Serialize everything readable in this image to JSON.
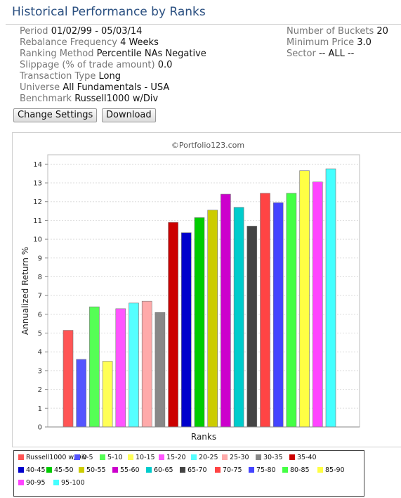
{
  "header": {
    "title": "Historical Performance by Ranks"
  },
  "settings_left": [
    {
      "label": "Period",
      "value": "01/02/99 - 05/03/14"
    },
    {
      "label": "Rebalance Frequency",
      "value": "4 Weeks"
    },
    {
      "label": "Ranking Method",
      "value": "Percentile NAs Negative"
    },
    {
      "label": "Slippage (% of trade amount)",
      "value": "0.0"
    },
    {
      "label": "Transaction Type",
      "value": "Long"
    },
    {
      "label": "Universe",
      "value": "All Fundamentals - USA"
    },
    {
      "label": "Benchmark",
      "value": "Russell1000 w/Div"
    }
  ],
  "settings_right": [
    {
      "label": "Number of Buckets",
      "value": "20"
    },
    {
      "label": "Minimum Price",
      "value": "3.0"
    },
    {
      "label": "Sector",
      "value": "-- ALL --"
    }
  ],
  "buttons": {
    "change_settings": "Change Settings",
    "download": "Download"
  },
  "chart_data": {
    "type": "bar",
    "title": "©Portfolio123.com",
    "xlabel": "Ranks",
    "ylabel": "Annualized Return %",
    "ylim": [
      0,
      14.5
    ],
    "yticks": [
      0,
      1,
      2,
      3,
      4,
      5,
      6,
      7,
      8,
      9,
      10,
      11,
      12,
      13,
      14
    ],
    "grid": true,
    "legend_position": "bottom",
    "categories": [
      "Russell1000 w/Div",
      "0-5",
      "5-10",
      "10-15",
      "15-20",
      "20-25",
      "25-30",
      "30-35",
      "35-40",
      "40-45",
      "45-50",
      "50-55",
      "55-60",
      "60-65",
      "65-70",
      "70-75",
      "75-80",
      "80-85",
      "85-90",
      "90-95",
      "95-100"
    ],
    "values": [
      5.15,
      3.6,
      6.4,
      3.5,
      6.3,
      6.6,
      6.7,
      6.1,
      10.9,
      10.35,
      11.15,
      11.55,
      12.4,
      11.7,
      10.7,
      12.45,
      11.95,
      12.45,
      13.65,
      13.05,
      13.75
    ],
    "colors": [
      "#ff5555",
      "#5555ff",
      "#55ff55",
      "#ffff55",
      "#ff55ff",
      "#55ffff",
      "#ffaaaa",
      "#888888",
      "#cc0000",
      "#0000cc",
      "#00cc00",
      "#cccc00",
      "#cc00cc",
      "#00cccc",
      "#444444",
      "#ff4444",
      "#4444ff",
      "#44ff44",
      "#ffff44",
      "#ff44ff",
      "#44ffff"
    ]
  }
}
